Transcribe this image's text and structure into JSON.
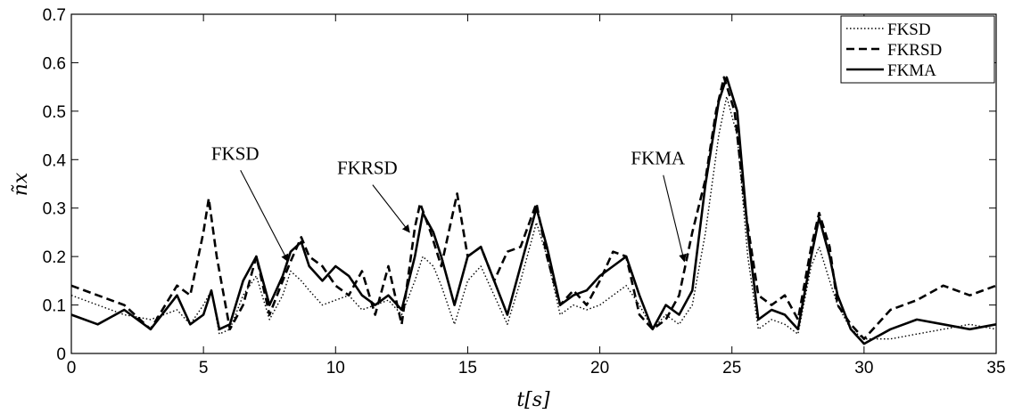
{
  "chart_data": {
    "type": "line",
    "title": "",
    "xlabel": "t[s]",
    "ylabel": "ñx",
    "xlim": [
      0,
      35
    ],
    "ylim": [
      0,
      0.7
    ],
    "xticks": [
      0,
      5,
      10,
      15,
      20,
      25,
      30,
      35
    ],
    "yticks": [
      0,
      0.1,
      0.2,
      0.3,
      0.4,
      0.5,
      0.6,
      0.7
    ],
    "xtick_labels": [
      "0",
      "5",
      "10",
      "15",
      "20",
      "25",
      "30",
      "35"
    ],
    "ytick_labels": [
      "0",
      "0.1",
      "0.2",
      "0.3",
      "0.4",
      "0.5",
      "0.6",
      "0.7"
    ],
    "grid": false,
    "legend_position": "top-right",
    "series": [
      {
        "name": "FKSD",
        "style": "dotted",
        "color": "#000000",
        "x": [
          0,
          1,
          2,
          3,
          4,
          4.5,
          5,
          5.3,
          5.6,
          6,
          6.5,
          7,
          7.5,
          8,
          8.3,
          8.7,
          9,
          9.5,
          10,
          10.5,
          11,
          11.5,
          12,
          12.5,
          13,
          13.3,
          13.7,
          14,
          14.5,
          15,
          15.5,
          16,
          16.5,
          17,
          17.6,
          18,
          18.5,
          19,
          19.5,
          20,
          20.5,
          21,
          21.5,
          22,
          22.5,
          23,
          23.5,
          24,
          24.5,
          24.8,
          25.2,
          25.6,
          26,
          26.5,
          27,
          27.5,
          28,
          28.3,
          28.7,
          29,
          29.5,
          30,
          31,
          32,
          33,
          34,
          35
        ],
        "y": [
          0.12,
          0.1,
          0.08,
          0.07,
          0.09,
          0.06,
          0.1,
          0.13,
          0.04,
          0.05,
          0.12,
          0.16,
          0.07,
          0.12,
          0.17,
          0.15,
          0.13,
          0.1,
          0.11,
          0.12,
          0.09,
          0.1,
          0.11,
          0.08,
          0.15,
          0.2,
          0.18,
          0.14,
          0.06,
          0.15,
          0.18,
          0.12,
          0.06,
          0.15,
          0.27,
          0.2,
          0.08,
          0.1,
          0.09,
          0.1,
          0.12,
          0.14,
          0.1,
          0.05,
          0.08,
          0.06,
          0.1,
          0.25,
          0.45,
          0.53,
          0.45,
          0.2,
          0.05,
          0.07,
          0.06,
          0.04,
          0.18,
          0.22,
          0.15,
          0.1,
          0.05,
          0.03,
          0.03,
          0.04,
          0.05,
          0.06,
          0.05
        ]
      },
      {
        "name": "FKRSD",
        "style": "dashed",
        "color": "#000000",
        "x": [
          0,
          1,
          2,
          3,
          4,
          4.5,
          5,
          5.2,
          5.5,
          6,
          6.5,
          7,
          7.5,
          8,
          8.3,
          8.7,
          9,
          9.5,
          10,
          10.5,
          11,
          11.5,
          12,
          12.5,
          13,
          13.2,
          13.6,
          14,
          14.6,
          15,
          15.5,
          16,
          16.5,
          17,
          17.6,
          18,
          18.5,
          19,
          19.5,
          20,
          20.5,
          21,
          21.5,
          22,
          22.5,
          23,
          23.5,
          24,
          24.4,
          24.7,
          25.1,
          25.5,
          26,
          26.5,
          27,
          27.5,
          28,
          28.3,
          28.7,
          29,
          29.5,
          30,
          31,
          32,
          33,
          34,
          35
        ],
        "y": [
          0.14,
          0.12,
          0.1,
          0.05,
          0.14,
          0.12,
          0.25,
          0.32,
          0.2,
          0.05,
          0.1,
          0.2,
          0.08,
          0.15,
          0.19,
          0.24,
          0.2,
          0.18,
          0.14,
          0.12,
          0.17,
          0.08,
          0.18,
          0.06,
          0.26,
          0.31,
          0.25,
          0.18,
          0.33,
          0.2,
          0.22,
          0.15,
          0.21,
          0.22,
          0.31,
          0.2,
          0.1,
          0.13,
          0.1,
          0.15,
          0.21,
          0.2,
          0.08,
          0.05,
          0.07,
          0.12,
          0.25,
          0.36,
          0.5,
          0.57,
          0.5,
          0.3,
          0.12,
          0.1,
          0.12,
          0.07,
          0.22,
          0.29,
          0.22,
          0.1,
          0.06,
          0.03,
          0.09,
          0.11,
          0.14,
          0.12,
          0.14
        ]
      },
      {
        "name": "FKMA",
        "style": "solid",
        "color": "#000000",
        "x": [
          0,
          1,
          2,
          3,
          4,
          4.5,
          5,
          5.3,
          5.6,
          6,
          6.5,
          7,
          7.5,
          8,
          8.3,
          8.7,
          9,
          9.5,
          10,
          10.5,
          11,
          11.5,
          12,
          12.5,
          13,
          13.3,
          13.7,
          14,
          14.5,
          15,
          15.5,
          16,
          16.5,
          17,
          17.6,
          18,
          18.5,
          19,
          19.5,
          20,
          20.5,
          21,
          21.5,
          22,
          22.5,
          23,
          23.5,
          24,
          24.5,
          24.8,
          25.2,
          25.6,
          26,
          26.5,
          27,
          27.5,
          28,
          28.3,
          28.7,
          29,
          29.5,
          30,
          31,
          32,
          33,
          34,
          35
        ],
        "y": [
          0.08,
          0.06,
          0.09,
          0.05,
          0.12,
          0.06,
          0.08,
          0.13,
          0.05,
          0.06,
          0.15,
          0.2,
          0.1,
          0.16,
          0.21,
          0.23,
          0.18,
          0.15,
          0.18,
          0.16,
          0.12,
          0.1,
          0.12,
          0.09,
          0.2,
          0.29,
          0.25,
          0.2,
          0.1,
          0.2,
          0.22,
          0.15,
          0.08,
          0.18,
          0.3,
          0.22,
          0.1,
          0.12,
          0.13,
          0.16,
          0.18,
          0.2,
          0.12,
          0.05,
          0.1,
          0.08,
          0.13,
          0.35,
          0.52,
          0.57,
          0.5,
          0.25,
          0.07,
          0.09,
          0.08,
          0.05,
          0.2,
          0.28,
          0.2,
          0.12,
          0.05,
          0.02,
          0.05,
          0.07,
          0.06,
          0.05,
          0.06
        ]
      }
    ],
    "annotations": [
      {
        "text": "FKSD",
        "target": [
          8.2,
          0.19
        ],
        "label_at": [
          6.2,
          0.4
        ]
      },
      {
        "text": "FKRSD",
        "target": [
          12.8,
          0.25
        ],
        "label_at": [
          11.2,
          0.37
        ]
      },
      {
        "text": "FKMA",
        "target": [
          23.2,
          0.19
        ],
        "label_at": [
          22.2,
          0.39
        ]
      }
    ]
  }
}
